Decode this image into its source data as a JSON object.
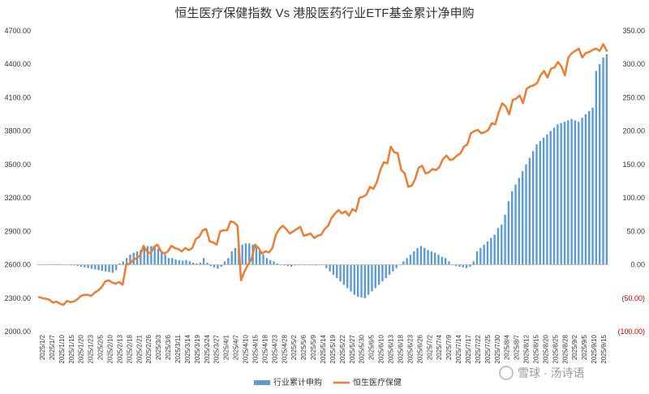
{
  "chart_data": {
    "type": "bar+line",
    "title": "恒生医疗保健指数 Vs 港股医药行业ETF基金累计净申购",
    "left_axis": {
      "ticks": [
        "2000.00",
        "2300.00",
        "2600.00",
        "2900.00",
        "3200.00",
        "3500.00",
        "3800.00",
        "4100.00",
        "4400.00",
        "4700.00"
      ],
      "range": [
        2000,
        4700
      ]
    },
    "right_axis": {
      "ticks": [
        "(100.00)",
        "(50.00)",
        "0.00",
        "50.00",
        "100.00",
        "150.00",
        "200.00",
        "250.00",
        "300.00",
        "350.00"
      ],
      "range": [
        -100,
        350
      ],
      "negative_color": "#c00000"
    },
    "x_tick_labels": [
      "2025/1/2",
      "2025/1/7",
      "2025/1/10",
      "2025/1/15",
      "2025/1/20",
      "2025/1/23",
      "2025/2/5",
      "2025/2/10",
      "2025/2/13",
      "2025/2/18",
      "2025/2/21",
      "2025/2/26",
      "2025/3/3",
      "2025/3/6",
      "2025/3/11",
      "2025/3/14",
      "2025/3/19",
      "2025/3/24",
      "2025/3/27",
      "2025/4/1",
      "2025/4/7",
      "2025/4/10",
      "2025/4/15",
      "2025/4/18",
      "2025/4/23",
      "2025/4/28",
      "2025/5/2",
      "2025/5/6",
      "2025/5/9",
      "2025/5/14",
      "2025/5/19",
      "2025/5/22",
      "2025/5/27",
      "2025/5/30",
      "2025/6/5",
      "2025/6/10",
      "2025/6/13",
      "2025/6/18",
      "2025/6/23",
      "2025/6/26",
      "2025/7/2",
      "2025/7/4",
      "2025/7/9",
      "2025/7/14",
      "2025/7/17",
      "2025/7/22",
      "2025/7/25",
      "2025/7/30",
      "2025/8/4",
      "2025/8/7",
      "2025/8/12",
      "2025/8/15",
      "2025/8/20",
      "2025/8/25",
      "2025/8/28",
      "2025/9/2",
      "2025/9/5",
      "2025/9/10",
      "2025/9/15"
    ],
    "series": [
      {
        "name": "行业累计申购",
        "type": "bar",
        "axis": "right",
        "color": "#5b9bd5",
        "values": [
          0,
          0,
          1,
          1,
          1,
          1,
          1,
          0,
          0,
          -1,
          -1,
          -2,
          -3,
          -4,
          -5,
          -6,
          -7,
          -8,
          -9,
          -10,
          -11,
          -12,
          -8,
          2,
          5,
          10,
          15,
          18,
          20,
          22,
          25,
          28,
          28,
          27,
          24,
          20,
          15,
          10,
          10,
          8,
          7,
          6,
          7,
          5,
          3,
          2,
          3,
          10,
          3,
          -2,
          -4,
          -6,
          -3,
          5,
          10,
          20,
          25,
          28,
          30,
          32,
          32,
          30,
          28,
          22,
          15,
          10,
          7,
          5,
          2,
          0,
          -1,
          -2,
          -3,
          -1,
          0,
          1,
          0,
          0,
          0,
          -1,
          0,
          0,
          -5,
          -10,
          -15,
          -20,
          -25,
          -30,
          -35,
          -40,
          -45,
          -48,
          -49,
          -50,
          -45,
          -40,
          -35,
          -30,
          -25,
          -20,
          -15,
          -10,
          -5,
          0,
          5,
          10,
          15,
          20,
          25,
          28,
          25,
          22,
          20,
          18,
          15,
          12,
          10,
          5,
          0,
          -2,
          -3,
          -4,
          -5,
          -3,
          5,
          20,
          25,
          30,
          35,
          40,
          45,
          55,
          60,
          75,
          95,
          110,
          120,
          130,
          140,
          150,
          160,
          170,
          180,
          185,
          190,
          195,
          200,
          205,
          210,
          212,
          214,
          216,
          218,
          216,
          214,
          220,
          225,
          230,
          235,
          290,
          300,
          310,
          315
        ]
      },
      {
        "name": "恒生医疗保健",
        "type": "line",
        "axis": "left",
        "color": "#ed7d31",
        "values": [
          2310,
          2300,
          2295,
          2285,
          2260,
          2270,
          2250,
          2240,
          2275,
          2265,
          2270,
          2290,
          2320,
          2330,
          2330,
          2320,
          2350,
          2370,
          2400,
          2450,
          2460,
          2440,
          2430,
          2445,
          2420,
          2600,
          2610,
          2640,
          2660,
          2680,
          2770,
          2720,
          2700,
          2760,
          2780,
          2720,
          2700,
          2720,
          2770,
          2750,
          2740,
          2720,
          2750,
          2730,
          2750,
          2830,
          2850,
          2910,
          2920,
          2810,
          2800,
          2780,
          2900,
          2910,
          2910,
          2990,
          2980,
          2950,
          2460,
          2540,
          2600,
          2650,
          2780,
          2750,
          2700,
          2720,
          2710,
          2750,
          2870,
          2920,
          2950,
          2920,
          2880,
          2900,
          2920,
          2940,
          2860,
          2870,
          2880,
          2840,
          2860,
          2870,
          2920,
          2950,
          3020,
          3060,
          3090,
          3060,
          3080,
          3040,
          3100,
          3080,
          3200,
          3210,
          3230,
          3300,
          3280,
          3340,
          3450,
          3520,
          3510,
          3660,
          3610,
          3600,
          3450,
          3420,
          3300,
          3310,
          3370,
          3470,
          3490,
          3420,
          3430,
          3460,
          3450,
          3480,
          3550,
          3580,
          3540,
          3550,
          3580,
          3600,
          3660,
          3680,
          3780,
          3800,
          3810,
          3780,
          3790,
          3810,
          3870,
          3860,
          3970,
          4050,
          4020,
          3950,
          4080,
          4090,
          4120,
          4050,
          4180,
          4200,
          4210,
          4230,
          4300,
          4340,
          4280,
          4360,
          4370,
          4420,
          4380,
          4300,
          4460,
          4500,
          4520,
          4540,
          4460,
          4500,
          4510,
          4530,
          4540,
          4520,
          4580,
          4520
        ]
      }
    ],
    "legend": {
      "position": "bottom",
      "items": [
        {
          "label": "行业累计申购",
          "marker": "bar",
          "color": "#5b9bd5"
        },
        {
          "label": "恒生医疗保健",
          "marker": "line",
          "color": "#ed7d31"
        }
      ]
    },
    "grid": false
  },
  "watermark": {
    "text": "雪球 · 汤诗语"
  }
}
